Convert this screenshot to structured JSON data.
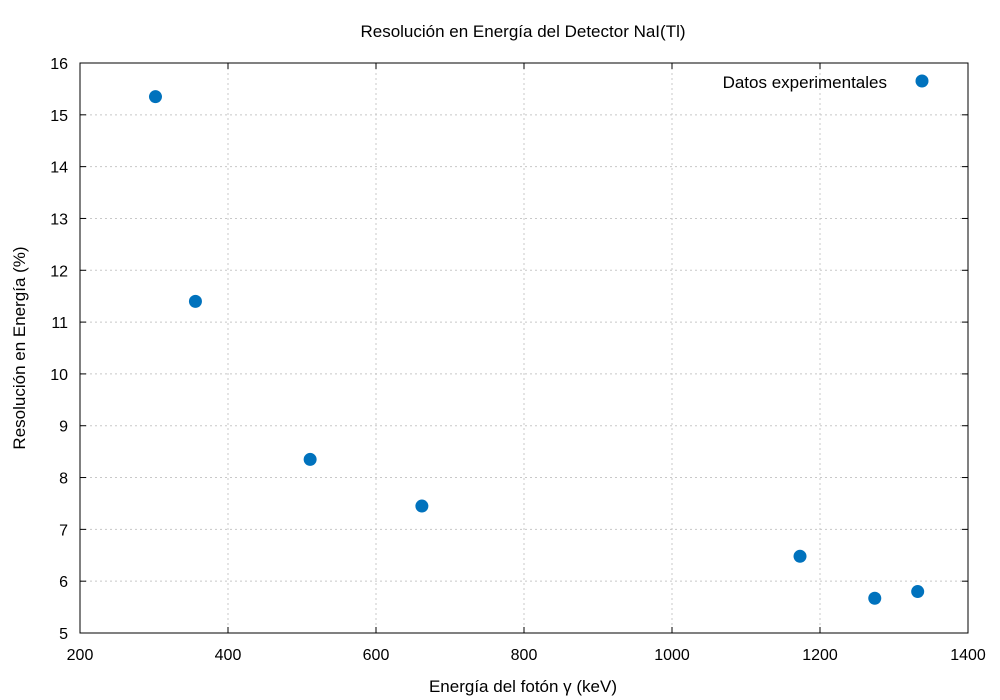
{
  "chart_data": {
    "type": "scatter",
    "title": "Resolución en Energía del Detector NaI(Tl)",
    "xlabel": "Energía del fotón γ (keV)",
    "ylabel": "Resolución en Energía (%)",
    "xlim": [
      200,
      1400
    ],
    "ylim": [
      5,
      16
    ],
    "xticks": [
      200,
      400,
      600,
      800,
      1000,
      1200,
      1400
    ],
    "yticks": [
      5,
      6,
      7,
      8,
      9,
      10,
      11,
      12,
      13,
      14,
      15,
      16
    ],
    "grid": true,
    "legend_position": "top-right",
    "series": [
      {
        "name": "Datos experimentales",
        "color": "#0072bd",
        "marker": "circle",
        "points": [
          {
            "x": 302,
            "y": 15.35
          },
          {
            "x": 356,
            "y": 11.4
          },
          {
            "x": 511,
            "y": 8.35
          },
          {
            "x": 662,
            "y": 7.45
          },
          {
            "x": 1173,
            "y": 6.48
          },
          {
            "x": 1274,
            "y": 5.67
          },
          {
            "x": 1332,
            "y": 5.8
          }
        ]
      }
    ]
  }
}
